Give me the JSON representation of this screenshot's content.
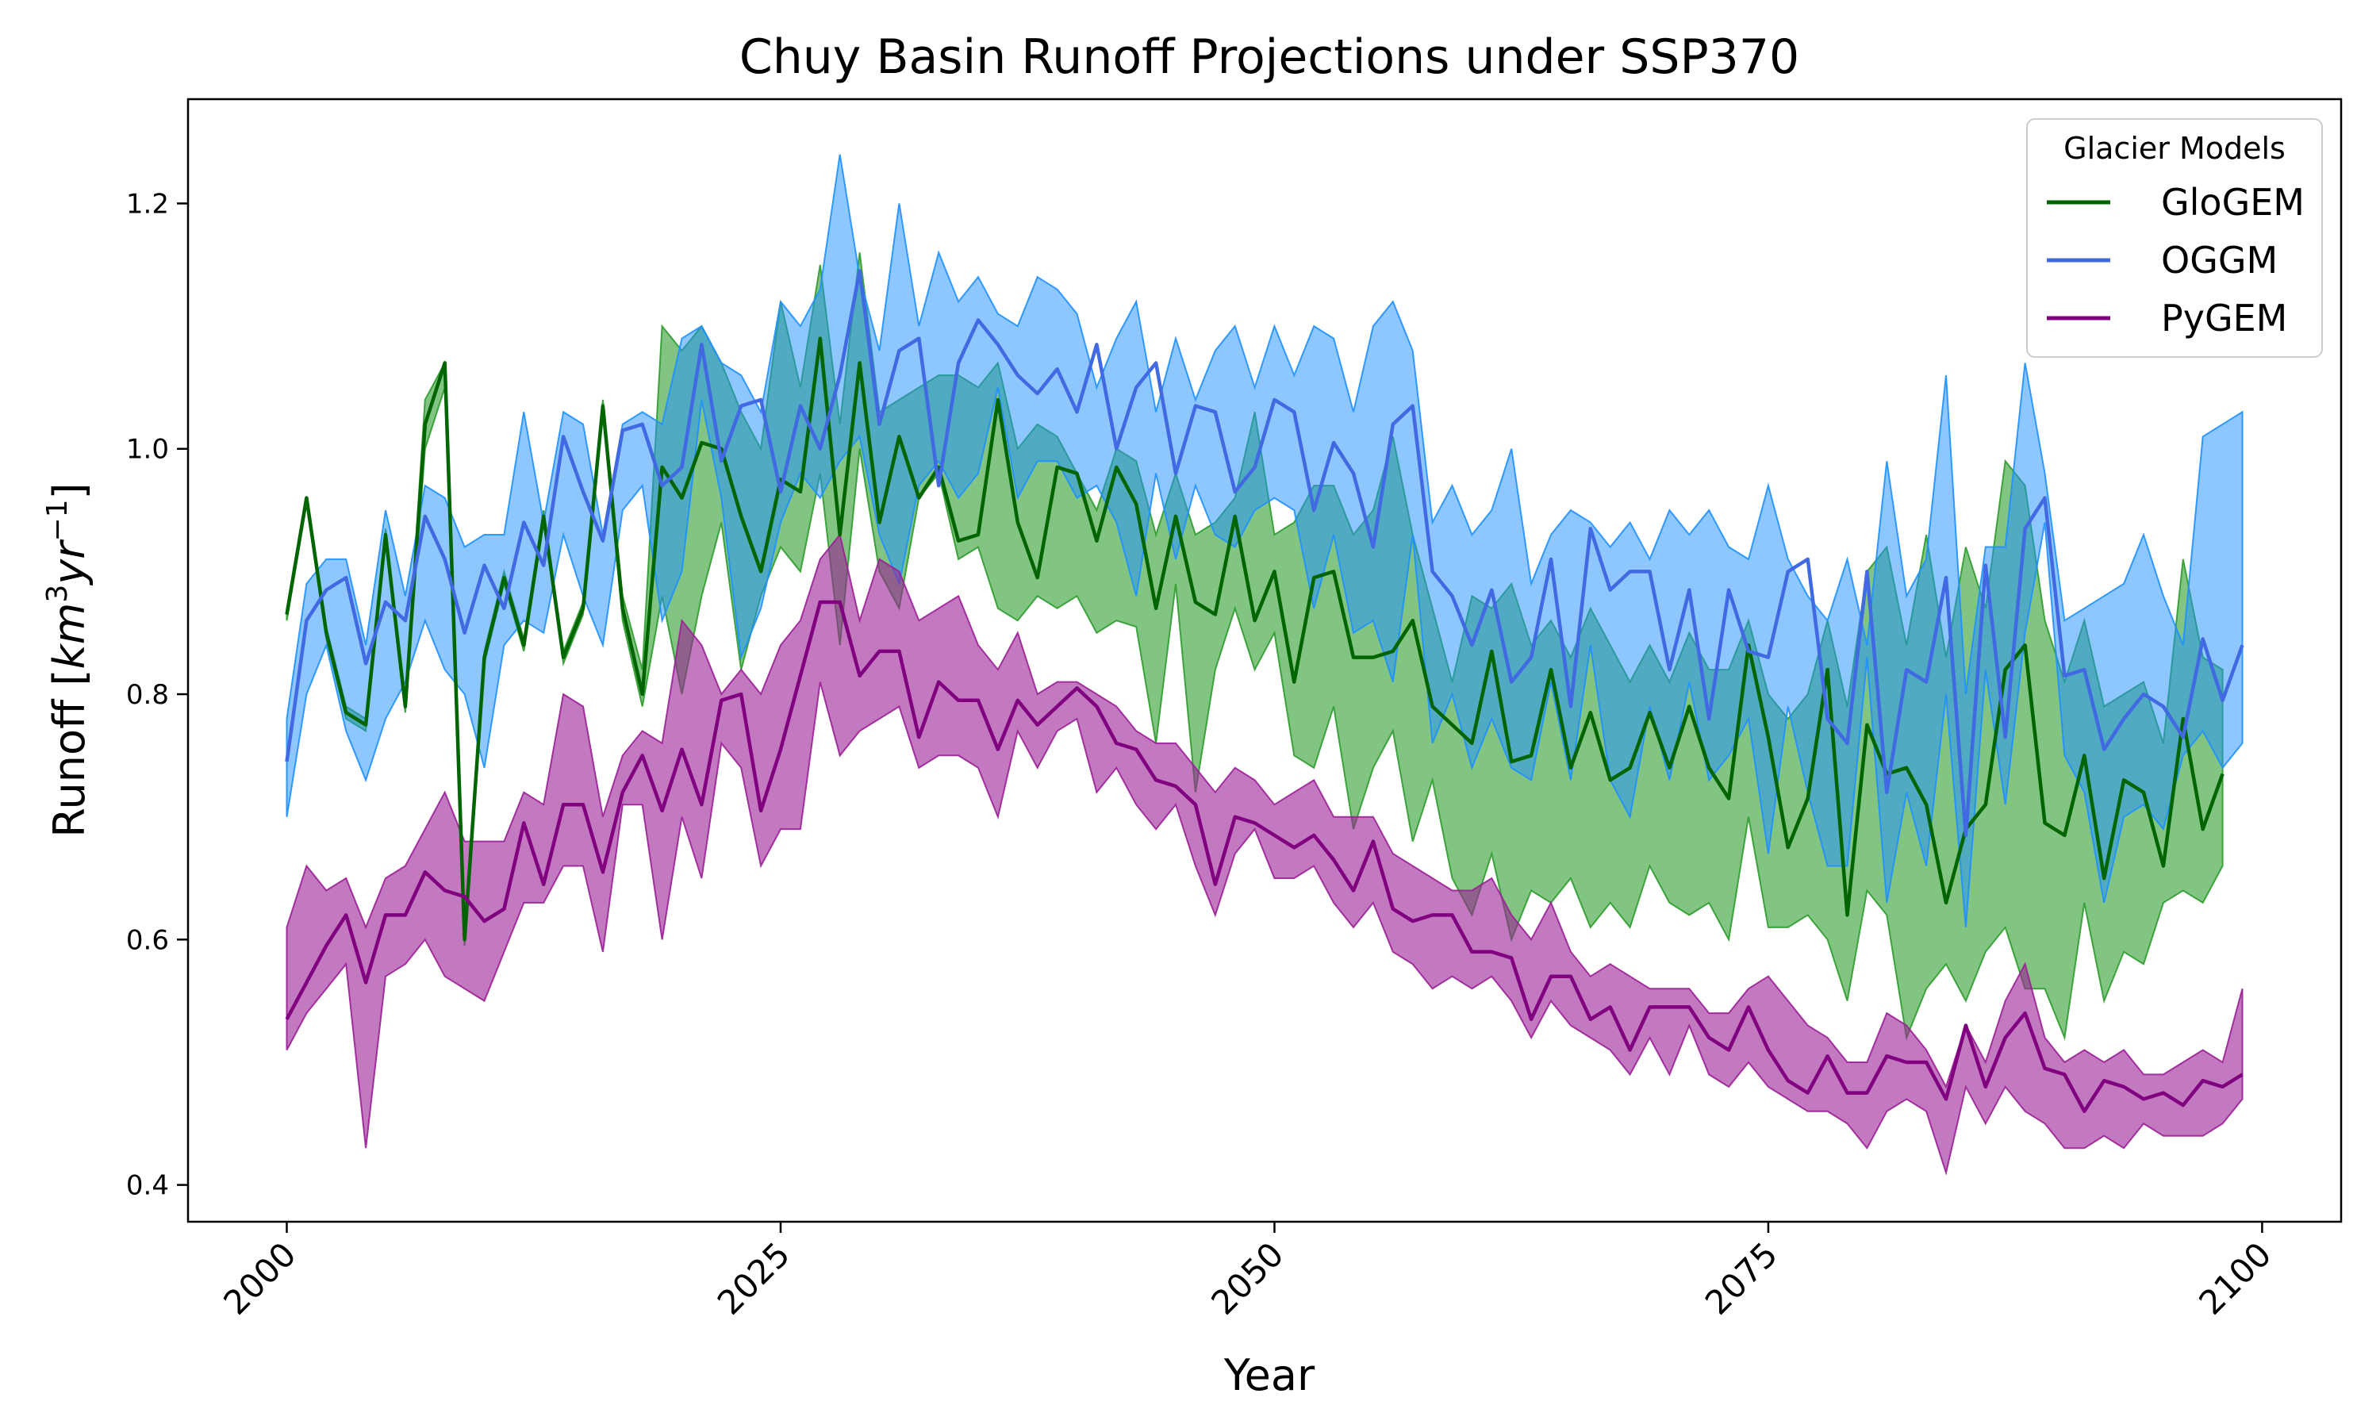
{
  "chart_data": {
    "type": "line",
    "title": "Chuy Basin Runoff Projections under SSP370",
    "xlabel": "Year",
    "ylabel": "Runoff [km³yr⁻¹]",
    "ylabel_parts": {
      "pre": "Runoff [",
      "base": "km",
      "sup": "3",
      "mid": "yr",
      "sup2": "−1",
      "post": "]"
    },
    "xlim": [
      1995,
      2104
    ],
    "ylim": [
      0.37,
      1.285
    ],
    "xticks": [
      2000,
      2025,
      2050,
      2075,
      2100
    ],
    "yticks": [
      0.4,
      0.6,
      0.8,
      1.0,
      1.2
    ],
    "ytick_labels": [
      "0.4",
      "0.6",
      "0.8",
      "1.0",
      "1.2"
    ],
    "grid": false,
    "legend": {
      "title": "Glacier Models",
      "position": "top-right"
    },
    "x_start": 2000,
    "x_end": 2099,
    "series": [
      {
        "name": "GloGEM",
        "color": "#006400",
        "fill": "#2e9c2e",
        "fill_opacity": 0.6,
        "mean": [
          0.865,
          0.96,
          0.85,
          0.785,
          0.775,
          0.93,
          0.79,
          1.02,
          1.07,
          0.6,
          0.83,
          0.895,
          0.84,
          0.945,
          0.83,
          0.87,
          1.035,
          0.87,
          0.8,
          0.985,
          0.96,
          1.005,
          1.0,
          0.945,
          0.9,
          0.975,
          0.965,
          1.09,
          0.93,
          1.07,
          0.94,
          1.01,
          0.96,
          0.985,
          0.925,
          0.93,
          1.04,
          0.94,
          0.895,
          0.985,
          0.98,
          0.925,
          0.985,
          0.955,
          0.87,
          0.945,
          0.875,
          0.865,
          0.945,
          0.86,
          0.9,
          0.81,
          0.895,
          0.9,
          0.83,
          0.83,
          0.835,
          0.86,
          0.79,
          0.775,
          0.76,
          0.835,
          0.745,
          0.75,
          0.82,
          0.74,
          0.785,
          0.73,
          0.74,
          0.785,
          0.74,
          0.79,
          0.74,
          0.715,
          0.84,
          0.765,
          0.675,
          0.715,
          0.82,
          0.62,
          0.775,
          0.735,
          0.74,
          0.71,
          0.63,
          0.69,
          0.71,
          0.82,
          0.84,
          0.695,
          0.685,
          0.75,
          0.65,
          0.73,
          0.72,
          0.66,
          0.78,
          0.69,
          0.735
        ],
        "low": [
          0.86,
          0.955,
          0.845,
          0.78,
          0.77,
          0.925,
          0.785,
          1.0,
          1.05,
          0.595,
          0.825,
          0.89,
          0.835,
          0.94,
          0.825,
          0.865,
          1.03,
          0.86,
          0.79,
          0.88,
          0.8,
          0.88,
          0.94,
          0.82,
          0.88,
          0.92,
          0.9,
          0.98,
          0.84,
          1.0,
          0.9,
          0.87,
          0.96,
          0.98,
          0.91,
          0.92,
          0.87,
          0.86,
          0.88,
          0.87,
          0.88,
          0.85,
          0.86,
          0.855,
          0.76,
          0.89,
          0.72,
          0.82,
          0.87,
          0.82,
          0.85,
          0.75,
          0.74,
          0.79,
          0.69,
          0.74,
          0.77,
          0.68,
          0.73,
          0.65,
          0.62,
          0.67,
          0.6,
          0.64,
          0.63,
          0.65,
          0.61,
          0.63,
          0.61,
          0.66,
          0.63,
          0.62,
          0.63,
          0.6,
          0.7,
          0.61,
          0.61,
          0.62,
          0.6,
          0.55,
          0.64,
          0.62,
          0.52,
          0.56,
          0.58,
          0.55,
          0.59,
          0.61,
          0.56,
          0.56,
          0.52,
          0.63,
          0.55,
          0.59,
          0.58,
          0.63,
          0.64,
          0.63,
          0.66
        ],
        "high": [
          0.87,
          0.96,
          0.855,
          0.79,
          0.78,
          0.935,
          0.795,
          1.04,
          1.07,
          0.605,
          0.835,
          0.9,
          0.845,
          0.95,
          0.835,
          0.875,
          1.04,
          0.88,
          0.82,
          1.1,
          1.08,
          1.1,
          1.07,
          1.03,
          1.0,
          1.12,
          1.05,
          1.15,
          1.02,
          1.16,
          1.03,
          1.04,
          1.05,
          1.06,
          1.06,
          1.05,
          1.07,
          1.0,
          1.02,
          1.01,
          0.98,
          0.95,
          1.0,
          0.99,
          0.93,
          0.98,
          0.93,
          0.94,
          0.96,
          1.03,
          0.93,
          0.94,
          0.97,
          0.97,
          0.93,
          0.95,
          1.01,
          0.93,
          0.87,
          0.81,
          0.88,
          0.87,
          0.89,
          0.84,
          0.86,
          0.83,
          0.87,
          0.84,
          0.81,
          0.84,
          0.81,
          0.85,
          0.82,
          0.82,
          0.86,
          0.8,
          0.78,
          0.8,
          0.86,
          0.79,
          0.9,
          0.92,
          0.84,
          0.93,
          0.83,
          0.92,
          0.87,
          0.99,
          0.97,
          0.86,
          0.81,
          0.86,
          0.79,
          0.8,
          0.81,
          0.76,
          0.91,
          0.83,
          0.82
        ]
      },
      {
        "name": "OGGM",
        "color": "#4169e1",
        "fill": "#1e90ff",
        "fill_opacity": 0.5,
        "mean": [
          0.745,
          0.86,
          0.885,
          0.895,
          0.825,
          0.875,
          0.86,
          0.945,
          0.91,
          0.85,
          0.905,
          0.87,
          0.94,
          0.905,
          1.01,
          0.965,
          0.925,
          1.015,
          1.02,
          0.97,
          0.985,
          1.085,
          0.99,
          1.035,
          1.04,
          0.965,
          1.035,
          1.0,
          1.06,
          1.145,
          1.02,
          1.08,
          1.09,
          0.97,
          1.07,
          1.105,
          1.085,
          1.06,
          1.045,
          1.065,
          1.03,
          1.085,
          1.0,
          1.05,
          1.07,
          0.98,
          1.035,
          1.03,
          0.965,
          0.985,
          1.04,
          1.03,
          0.95,
          1.005,
          0.98,
          0.92,
          1.02,
          1.035,
          0.9,
          0.88,
          0.84,
          0.885,
          0.81,
          0.83,
          0.91,
          0.79,
          0.935,
          0.885,
          0.9,
          0.9,
          0.82,
          0.885,
          0.78,
          0.885,
          0.835,
          0.83,
          0.9,
          0.91,
          0.78,
          0.76,
          0.9,
          0.72,
          0.82,
          0.81,
          0.895,
          0.685,
          0.905,
          0.765,
          0.935,
          0.96,
          0.815,
          0.82,
          0.755,
          0.78,
          0.8,
          0.79,
          0.765,
          0.845,
          0.795,
          0.84
        ],
        "low": [
          0.7,
          0.8,
          0.84,
          0.77,
          0.73,
          0.78,
          0.81,
          0.86,
          0.82,
          0.8,
          0.74,
          0.84,
          0.86,
          0.85,
          0.93,
          0.88,
          0.84,
          0.95,
          0.97,
          0.86,
          0.9,
          1.04,
          0.96,
          0.83,
          0.87,
          0.94,
          0.98,
          0.96,
          0.99,
          1.01,
          0.93,
          0.89,
          0.97,
          0.99,
          0.96,
          0.98,
          1.05,
          0.96,
          0.99,
          0.99,
          0.96,
          0.97,
          0.94,
          0.88,
          0.98,
          0.91,
          0.97,
          0.93,
          0.92,
          0.95,
          0.96,
          0.95,
          0.87,
          0.93,
          0.85,
          0.86,
          0.81,
          0.93,
          0.76,
          0.8,
          0.74,
          0.78,
          0.74,
          0.73,
          0.81,
          0.73,
          0.84,
          0.73,
          0.7,
          0.79,
          0.73,
          0.81,
          0.73,
          0.75,
          0.78,
          0.67,
          0.79,
          0.72,
          0.66,
          0.66,
          0.83,
          0.63,
          0.72,
          0.66,
          0.8,
          0.61,
          0.82,
          0.71,
          0.85,
          0.94,
          0.75,
          0.72,
          0.63,
          0.7,
          0.71,
          0.69,
          0.75,
          0.77,
          0.74,
          0.76
        ],
        "high": [
          0.78,
          0.89,
          0.91,
          0.91,
          0.84,
          0.95,
          0.88,
          0.97,
          0.96,
          0.92,
          0.93,
          0.93,
          1.03,
          0.94,
          1.03,
          1.02,
          0.93,
          1.02,
          1.03,
          1.02,
          1.09,
          1.1,
          1.07,
          1.06,
          1.03,
          1.12,
          1.1,
          1.13,
          1.24,
          1.14,
          1.08,
          1.2,
          1.1,
          1.16,
          1.12,
          1.14,
          1.11,
          1.1,
          1.14,
          1.13,
          1.11,
          1.05,
          1.09,
          1.12,
          1.03,
          1.09,
          1.04,
          1.08,
          1.1,
          1.05,
          1.1,
          1.06,
          1.1,
          1.09,
          1.03,
          1.1,
          1.12,
          1.08,
          0.94,
          0.97,
          0.93,
          0.95,
          1.0,
          0.89,
          0.93,
          0.95,
          0.94,
          0.92,
          0.94,
          0.91,
          0.95,
          0.93,
          0.95,
          0.92,
          0.91,
          0.97,
          0.91,
          0.88,
          0.86,
          0.91,
          0.84,
          0.99,
          0.88,
          0.91,
          1.06,
          0.8,
          0.92,
          0.92,
          1.07,
          0.98,
          0.86,
          0.87,
          0.88,
          0.89,
          0.93,
          0.88,
          0.84,
          1.01,
          1.02,
          1.03
        ]
      },
      {
        "name": "PyGEM",
        "color": "#800080",
        "fill": "#9b1f96",
        "fill_opacity": 0.6,
        "mean": [
          0.535,
          0.565,
          0.595,
          0.62,
          0.565,
          0.62,
          0.62,
          0.655,
          0.64,
          0.635,
          0.615,
          0.625,
          0.695,
          0.645,
          0.71,
          0.71,
          0.655,
          0.72,
          0.75,
          0.705,
          0.755,
          0.71,
          0.795,
          0.8,
          0.705,
          0.755,
          0.815,
          0.875,
          0.875,
          0.815,
          0.835,
          0.835,
          0.765,
          0.81,
          0.795,
          0.795,
          0.755,
          0.795,
          0.775,
          0.79,
          0.805,
          0.79,
          0.76,
          0.755,
          0.73,
          0.725,
          0.71,
          0.645,
          0.7,
          0.695,
          0.685,
          0.675,
          0.685,
          0.665,
          0.64,
          0.68,
          0.625,
          0.615,
          0.62,
          0.62,
          0.59,
          0.59,
          0.585,
          0.535,
          0.57,
          0.57,
          0.535,
          0.545,
          0.51,
          0.545,
          0.545,
          0.545,
          0.52,
          0.51,
          0.545,
          0.51,
          0.485,
          0.475,
          0.505,
          0.475,
          0.475,
          0.505,
          0.5,
          0.5,
          0.47,
          0.53,
          0.48,
          0.52,
          0.54,
          0.495,
          0.49,
          0.46,
          0.485,
          0.48,
          0.47,
          0.475,
          0.465,
          0.485,
          0.48,
          0.49
        ],
        "low": [
          0.51,
          0.54,
          0.56,
          0.58,
          0.43,
          0.57,
          0.58,
          0.6,
          0.57,
          0.56,
          0.55,
          0.59,
          0.63,
          0.63,
          0.66,
          0.66,
          0.59,
          0.71,
          0.71,
          0.6,
          0.7,
          0.65,
          0.76,
          0.74,
          0.66,
          0.69,
          0.69,
          0.81,
          0.75,
          0.77,
          0.78,
          0.79,
          0.74,
          0.75,
          0.75,
          0.74,
          0.7,
          0.77,
          0.74,
          0.77,
          0.78,
          0.72,
          0.74,
          0.71,
          0.69,
          0.71,
          0.66,
          0.62,
          0.67,
          0.69,
          0.65,
          0.65,
          0.66,
          0.63,
          0.61,
          0.63,
          0.59,
          0.58,
          0.56,
          0.57,
          0.56,
          0.57,
          0.55,
          0.52,
          0.55,
          0.53,
          0.52,
          0.51,
          0.49,
          0.52,
          0.49,
          0.53,
          0.49,
          0.48,
          0.5,
          0.48,
          0.47,
          0.46,
          0.46,
          0.45,
          0.43,
          0.46,
          0.47,
          0.46,
          0.41,
          0.48,
          0.45,
          0.48,
          0.46,
          0.45,
          0.43,
          0.43,
          0.44,
          0.43,
          0.45,
          0.44,
          0.44,
          0.44,
          0.45,
          0.47
        ],
        "high": [
          0.61,
          0.66,
          0.64,
          0.65,
          0.61,
          0.65,
          0.66,
          0.69,
          0.72,
          0.68,
          0.68,
          0.68,
          0.72,
          0.71,
          0.8,
          0.79,
          0.7,
          0.75,
          0.77,
          0.76,
          0.86,
          0.84,
          0.8,
          0.82,
          0.8,
          0.84,
          0.86,
          0.91,
          0.93,
          0.86,
          0.91,
          0.9,
          0.86,
          0.87,
          0.88,
          0.84,
          0.82,
          0.85,
          0.8,
          0.81,
          0.81,
          0.8,
          0.79,
          0.77,
          0.76,
          0.76,
          0.74,
          0.72,
          0.74,
          0.73,
          0.71,
          0.72,
          0.73,
          0.7,
          0.7,
          0.7,
          0.67,
          0.66,
          0.65,
          0.64,
          0.64,
          0.65,
          0.62,
          0.6,
          0.63,
          0.59,
          0.57,
          0.58,
          0.57,
          0.56,
          0.56,
          0.56,
          0.54,
          0.54,
          0.56,
          0.57,
          0.55,
          0.53,
          0.52,
          0.5,
          0.5,
          0.54,
          0.53,
          0.51,
          0.48,
          0.53,
          0.5,
          0.55,
          0.58,
          0.52,
          0.5,
          0.51,
          0.5,
          0.51,
          0.49,
          0.49,
          0.5,
          0.51,
          0.5,
          0.56
        ]
      }
    ]
  }
}
